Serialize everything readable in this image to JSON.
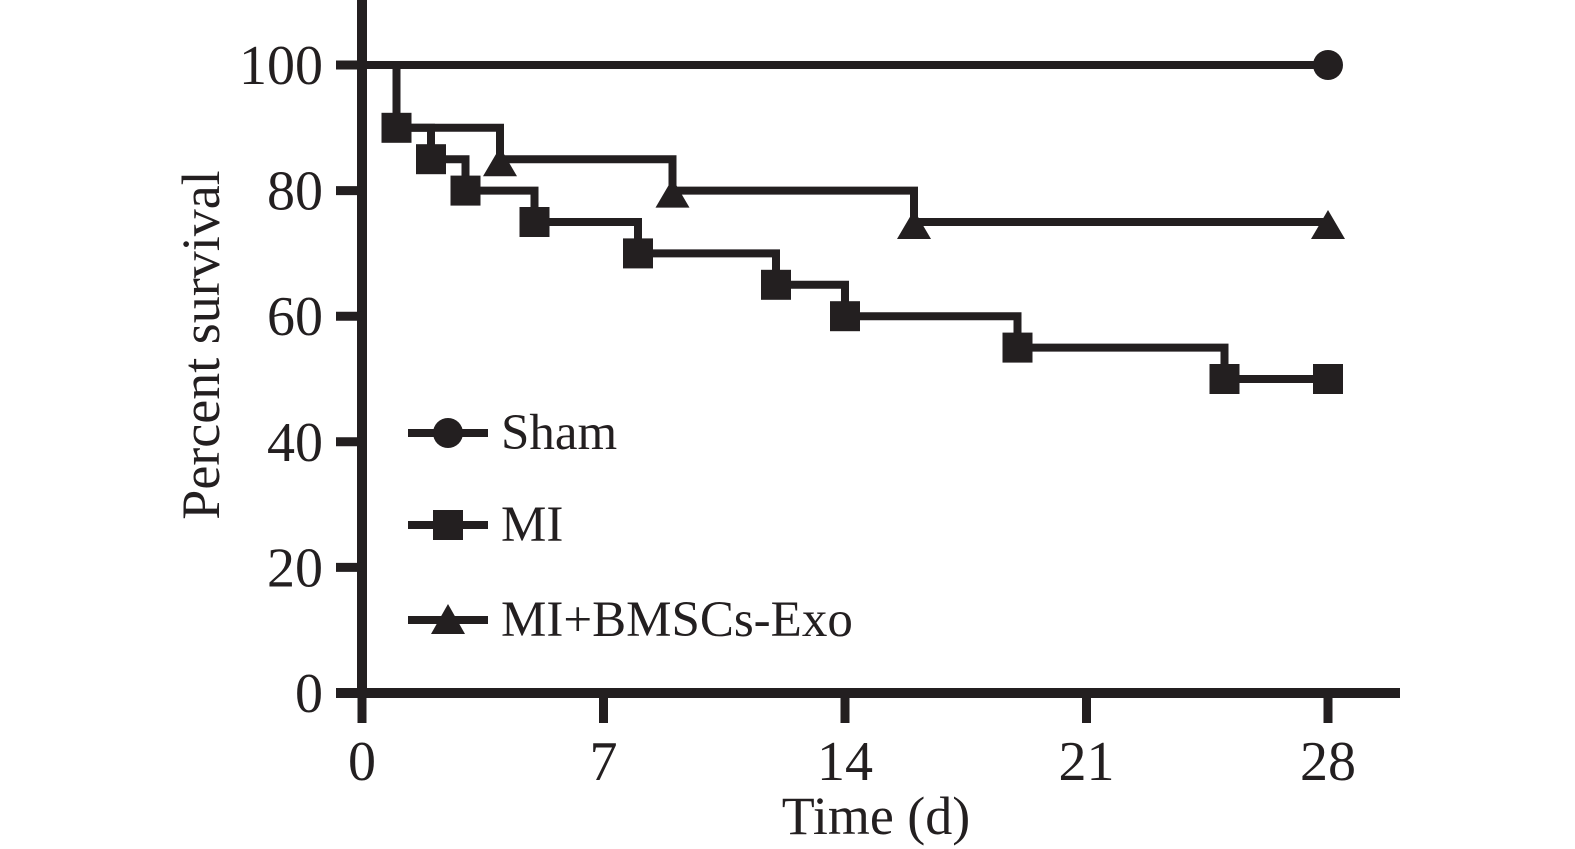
{
  "colors": {
    "ink": "#231f20",
    "background": "#ffffff"
  },
  "chart_data": {
    "type": "line",
    "subtype": "kaplan-meier-survival-step",
    "title": "",
    "xlabel": "Time (d)",
    "ylabel": "Percent survival",
    "xlim": [
      0,
      28
    ],
    "ylim": [
      0,
      100
    ],
    "grid": false,
    "legend_position": "inside-lower-left",
    "xticks": [
      0,
      7,
      14,
      21,
      28
    ],
    "xtick_labels": [
      "0",
      "7",
      "14",
      "21",
      "28"
    ],
    "yticks": [
      100,
      80,
      60,
      40,
      20,
      0
    ],
    "ytick_labels": [
      "100",
      "80",
      "60",
      "40",
      "20",
      "0"
    ],
    "series": [
      {
        "name": "Sham",
        "marker": "circle",
        "steps": [
          [
            0,
            100
          ],
          [
            28,
            100
          ]
        ],
        "marker_points": [
          [
            28,
            100
          ]
        ]
      },
      {
        "name": "MI+BMSCs-Exo",
        "marker": "triangle",
        "steps": [
          [
            0,
            100
          ],
          [
            1,
            90
          ],
          [
            4,
            85
          ],
          [
            9,
            80
          ],
          [
            16,
            75
          ],
          [
            28,
            75
          ]
        ],
        "marker_points": [
          [
            4,
            85
          ],
          [
            9,
            80
          ],
          [
            16,
            75
          ],
          [
            28,
            75
          ]
        ]
      },
      {
        "name": "MI",
        "marker": "square",
        "steps": [
          [
            0,
            100
          ],
          [
            1,
            90
          ],
          [
            2,
            85
          ],
          [
            3,
            80
          ],
          [
            5,
            75
          ],
          [
            8,
            70
          ],
          [
            12,
            65
          ],
          [
            14,
            60
          ],
          [
            19,
            55
          ],
          [
            25,
            50
          ],
          [
            28,
            50
          ]
        ],
        "marker_points": [
          [
            1,
            90
          ],
          [
            2,
            85
          ],
          [
            3,
            80
          ],
          [
            5,
            75
          ],
          [
            8,
            70
          ],
          [
            12,
            65
          ],
          [
            14,
            60
          ],
          [
            19,
            55
          ],
          [
            25,
            50
          ],
          [
            28,
            50
          ]
        ]
      }
    ]
  },
  "legend": {
    "items": [
      {
        "label": "Sham",
        "marker": "circle"
      },
      {
        "label": "MI",
        "marker": "square"
      },
      {
        "label": "MI+BMSCs-Exo",
        "marker": "triangle"
      }
    ]
  },
  "axis_titles": {
    "y": "Percent survival",
    "x": "Time (d)"
  }
}
